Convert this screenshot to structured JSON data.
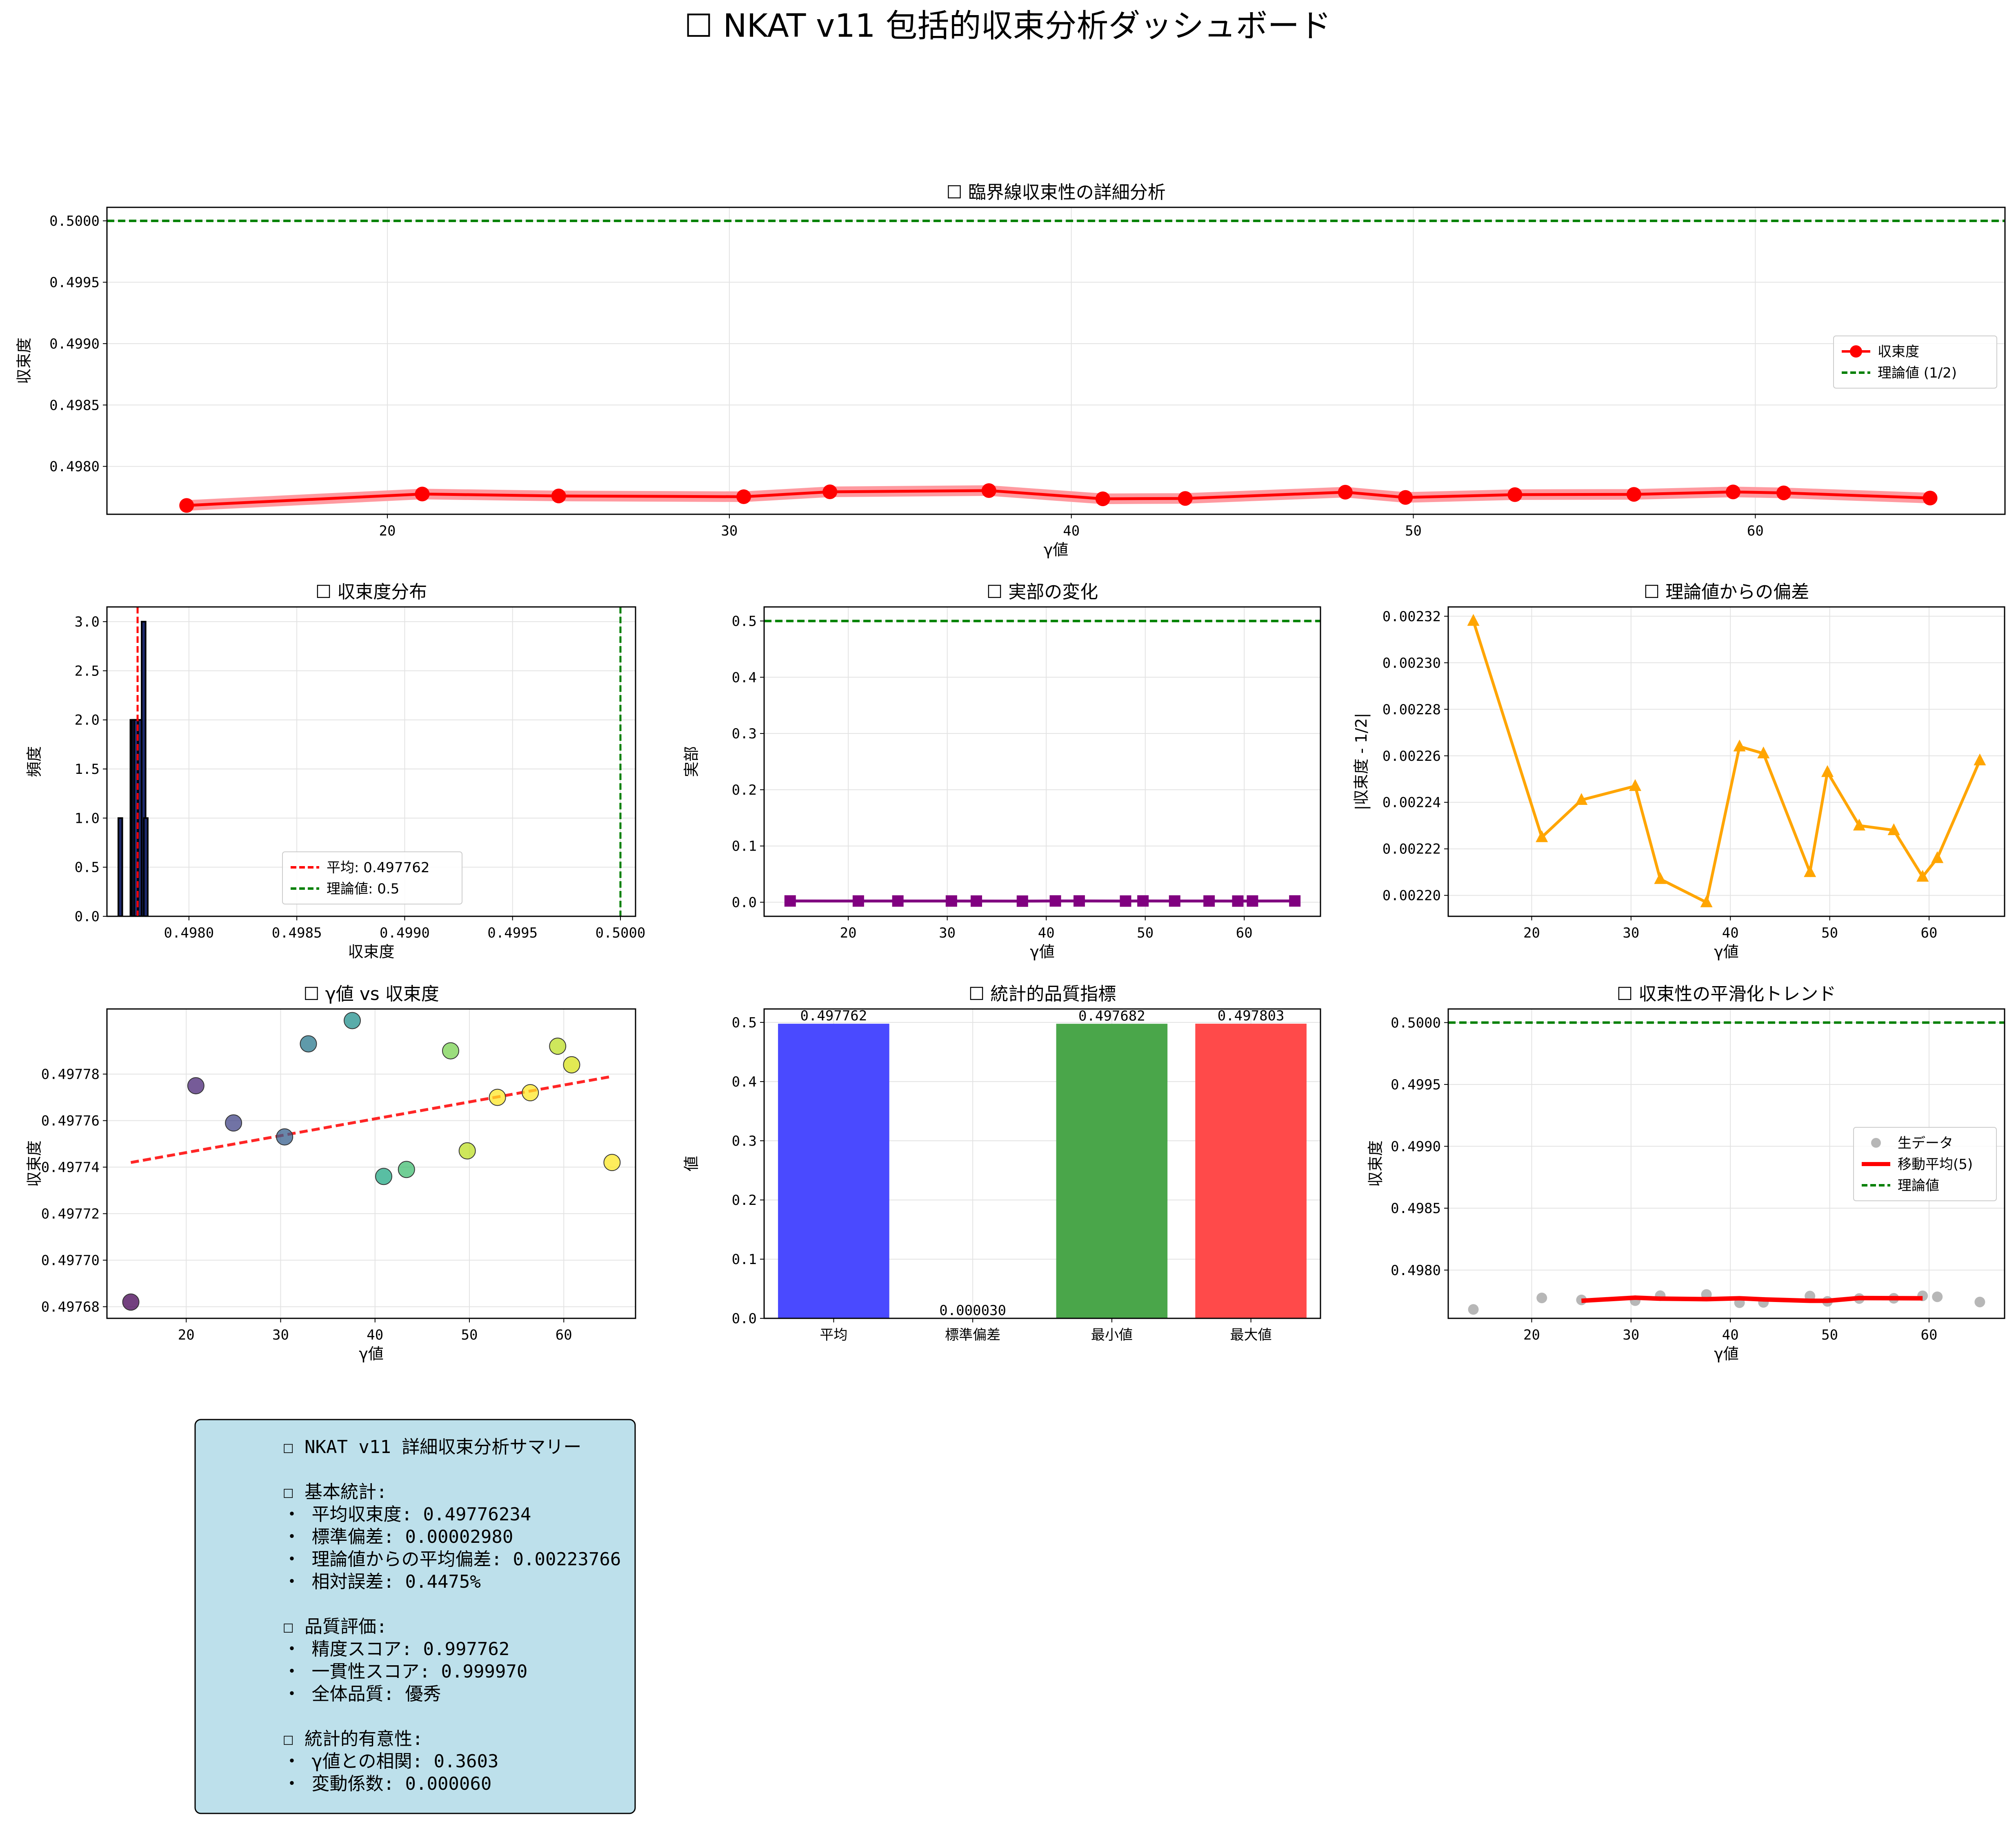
{
  "page": {
    "title": "☐ NKAT v11 包括的収束分析ダッシュボード"
  },
  "chart_data": [
    {
      "id": "critical-line",
      "type": "line",
      "title": "☐ 臨界線収束性の詳細分析",
      "xlabel": "γ値",
      "ylabel": "収束度",
      "xlim": [
        11.8,
        67.3
      ],
      "ylim": [
        0.49761,
        0.50011
      ],
      "xticks": [
        20,
        30,
        40,
        50,
        60
      ],
      "yticks": [
        0.498,
        0.4985,
        0.499,
        0.4995,
        0.5
      ],
      "ytick_labels": [
        "0.4980",
        "0.4985",
        "0.4990",
        "0.4995",
        "0.5000"
      ],
      "grid": true,
      "legend": "center-right",
      "series": [
        {
          "name": "収束度",
          "color": "#ff0000",
          "x": [
            14.13,
            21.02,
            25.01,
            30.42,
            32.94,
            37.59,
            40.92,
            43.33,
            48.01,
            49.77,
            52.97,
            56.45,
            59.35,
            60.83,
            65.11
          ],
          "y": [
            0.497682,
            0.497775,
            0.497759,
            0.497753,
            0.497793,
            0.497803,
            0.497736,
            0.497739,
            0.49779,
            0.497747,
            0.49777,
            0.497772,
            0.497792,
            0.497784,
            0.497742
          ]
        },
        {
          "name": "理論値 (1/2)",
          "color": "#008000",
          "y_const": 0.5
        }
      ]
    },
    {
      "id": "histogram",
      "type": "bar",
      "title": "☐ 収束度分布",
      "xlabel": "収束度",
      "ylabel": "頻度",
      "xlim": [
        0.49762,
        0.50007
      ],
      "ylim": [
        0,
        3.15
      ],
      "xticks": [
        0.498,
        0.4985,
        0.499,
        0.4995,
        0.5
      ],
      "xtick_labels": [
        "0.4980",
        "0.4985",
        "0.4990",
        "0.4995",
        "0.5000"
      ],
      "yticks": [
        0,
        0.5,
        1,
        1.5,
        2,
        2.5,
        3
      ],
      "ytick_labels": [
        "0.0",
        "0.5",
        "1.0",
        "1.5",
        "2.0",
        "2.5",
        "3.0"
      ],
      "grid": true,
      "legend": "lower-right",
      "bins": [
        {
          "x": 0.497682,
          "count": 1
        },
        {
          "x": 0.497738,
          "count": 2
        },
        {
          "x": 0.497745,
          "count": 2
        },
        {
          "x": 0.497755,
          "count": 2
        },
        {
          "x": 0.497773,
          "count": 2
        },
        {
          "x": 0.49779,
          "count": 3
        },
        {
          "x": 0.4978,
          "count": 1
        }
      ],
      "series": [
        {
          "name": "平均: 0.497762",
          "color": "#ff0000",
          "x_const": 0.497762
        },
        {
          "name": "理論値: 0.5",
          "color": "#008000",
          "x_const": 0.5
        }
      ]
    },
    {
      "id": "real-part",
      "type": "line",
      "title": "☐ 実部の変化",
      "xlabel": "γ値",
      "ylabel": "実部",
      "xlim": [
        11.5,
        67.7
      ],
      "ylim": [
        -0.025,
        0.525
      ],
      "xticks": [
        20,
        30,
        40,
        50,
        60
      ],
      "yticks": [
        0,
        0.1,
        0.2,
        0.3,
        0.4,
        0.5
      ],
      "ytick_labels": [
        "0.0",
        "0.1",
        "0.2",
        "0.3",
        "0.4",
        "0.5"
      ],
      "grid": true,
      "series": [
        {
          "name": "",
          "color": "#800080",
          "x": [
            14.13,
            21.02,
            25.01,
            30.42,
            32.94,
            37.59,
            40.92,
            43.33,
            48.01,
            49.77,
            52.97,
            56.45,
            59.35,
            60.83,
            65.11
          ],
          "y": [
            0.0023,
            0.0022,
            0.0022,
            0.0022,
            0.0021,
            0.002,
            0.0023,
            0.0023,
            0.0021,
            0.0023,
            0.0022,
            0.0022,
            0.0021,
            0.0022,
            0.0023
          ]
        },
        {
          "name": "",
          "color": "#008000",
          "y_const": 0.5
        }
      ]
    },
    {
      "id": "deviation",
      "type": "line",
      "title": "☐ 理論値からの偏差",
      "xlabel": "γ値",
      "ylabel": "|収束度 - 1/2|",
      "xlim": [
        11.6,
        67.6
      ],
      "ylim": [
        0.002191,
        0.002324
      ],
      "xticks": [
        20,
        30,
        40,
        50,
        60
      ],
      "yticks": [
        0.0022,
        0.00222,
        0.00224,
        0.00226,
        0.00228,
        0.0023,
        0.00232
      ],
      "ytick_labels": [
        "0.00220",
        "0.00222",
        "0.00224",
        "0.00226",
        "0.00228",
        "0.00230",
        "0.00232"
      ],
      "grid": true,
      "series": [
        {
          "name": "",
          "color": "#ffa500",
          "x": [
            14.13,
            21.02,
            25.01,
            30.42,
            32.94,
            37.59,
            40.92,
            43.33,
            48.01,
            49.77,
            52.97,
            56.45,
            59.35,
            60.83,
            65.11
          ],
          "y": [
            0.002318,
            0.002225,
            0.002241,
            0.002247,
            0.002207,
            0.002197,
            0.002264,
            0.002261,
            0.00221,
            0.002253,
            0.00223,
            0.002228,
            0.002208,
            0.002216,
            0.002258
          ]
        }
      ]
    },
    {
      "id": "scatter",
      "type": "scatter",
      "title": "☐ γ値 vs 収束度",
      "xlabel": "γ値",
      "ylabel": "収束度",
      "xlim": [
        11.6,
        67.6
      ],
      "ylim": [
        0.497675,
        0.497808
      ],
      "xticks": [
        20,
        30,
        40,
        50,
        60
      ],
      "yticks": [
        0.49768,
        0.4977,
        0.49772,
        0.49774,
        0.49776,
        0.49778
      ],
      "ytick_labels": [
        "0.49768",
        "0.49770",
        "0.49772",
        "0.49774",
        "0.49776",
        "0.49778"
      ],
      "grid": true,
      "points": {
        "x": [
          14.13,
          21.02,
          25.01,
          30.42,
          32.94,
          37.59,
          40.92,
          43.33,
          48.01,
          49.77,
          52.97,
          56.45,
          59.35,
          60.83,
          65.11
        ],
        "y": [
          0.497682,
          0.497775,
          0.497759,
          0.497753,
          0.497793,
          0.497803,
          0.497736,
          0.497739,
          0.49779,
          0.497747,
          0.49777,
          0.497772,
          0.497792,
          0.497784,
          0.497742
        ],
        "colors": [
          "#440154",
          "#482475",
          "#414487",
          "#355f8d",
          "#2a788e",
          "#21908d",
          "#22a884",
          "#42be71",
          "#7ad151",
          "#bddf26",
          "#fde725",
          "#fde725",
          "#bddf26",
          "#d8e219",
          "#fde725"
        ]
      },
      "trend": {
        "color": "#ff0000",
        "x": [
          14.13,
          65.11
        ],
        "y": [
          0.497742,
          0.497779
        ]
      }
    },
    {
      "id": "quality-bars",
      "type": "bar",
      "title": "☐ 統計的品質指標",
      "ylabel": "値",
      "ylim": [
        0,
        0.5227
      ],
      "yticks": [
        0,
        0.1,
        0.2,
        0.3,
        0.4,
        0.5
      ],
      "ytick_labels": [
        "0.0",
        "0.1",
        "0.2",
        "0.3",
        "0.4",
        "0.5"
      ],
      "grid": true,
      "categories": [
        "平均",
        "標準偏差",
        "最小値",
        "最大値"
      ],
      "values": [
        0.497762,
        3e-05,
        0.497682,
        0.497803
      ],
      "value_labels": [
        "0.497762",
        "0.000030",
        "0.497682",
        "0.497803"
      ],
      "colors": [
        "#4a4aff",
        "#ffb84a",
        "#4aa64a",
        "#ff4a4a"
      ]
    },
    {
      "id": "smoothed",
      "type": "line",
      "title": "☐ 収束性の平滑化トレンド",
      "xlabel": "γ値",
      "ylabel": "収束度",
      "xlim": [
        11.6,
        67.6
      ],
      "ylim": [
        0.49761,
        0.50011
      ],
      "xticks": [
        20,
        30,
        40,
        50,
        60
      ],
      "yticks": [
        0.498,
        0.4985,
        0.499,
        0.4995,
        0.5
      ],
      "ytick_labels": [
        "0.4980",
        "0.4985",
        "0.4990",
        "0.4995",
        "0.5000"
      ],
      "grid": true,
      "legend": "center-right",
      "series": [
        {
          "name": "生データ",
          "color": "#999999",
          "x": [
            14.13,
            21.02,
            25.01,
            30.42,
            32.94,
            37.59,
            40.92,
            43.33,
            48.01,
            49.77,
            52.97,
            56.45,
            59.35,
            60.83,
            65.11
          ],
          "y": [
            0.497682,
            0.497775,
            0.497759,
            0.497753,
            0.497793,
            0.497803,
            0.497736,
            0.497739,
            0.49779,
            0.497747,
            0.49777,
            0.497772,
            0.497792,
            0.497784,
            0.497742
          ]
        },
        {
          "name": "移動平均(5)",
          "color": "#ff0000",
          "x": [
            25.01,
            30.42,
            32.94,
            37.59,
            40.92,
            43.33,
            48.01,
            49.77,
            52.97,
            56.45,
            59.35
          ],
          "y": [
            0.497752,
            0.497777,
            0.497769,
            0.497765,
            0.497772,
            0.497763,
            0.497752,
            0.497752,
            0.497774,
            0.497773,
            0.497772
          ]
        },
        {
          "name": "理論値",
          "color": "#008000",
          "y_const": 0.5
        }
      ]
    }
  ],
  "summary": {
    "lines": [
      "☐ NKAT v11 詳細収束分析サマリー",
      "",
      "☐ 基本統計:",
      "・ 平均収束度: 0.49776234",
      "・ 標準偏差: 0.00002980",
      "・ 理論値からの平均偏差: 0.00223766",
      "・ 相対誤差: 0.4475%",
      "",
      "☐ 品質評価:",
      "・ 精度スコア: 0.997762",
      "・ 一貫性スコア: 0.999970",
      "・ 全体品質: 優秀",
      "",
      "☐ 統計的有意性:",
      "・ γ値との相関: 0.3603",
      "・ 変動係数: 0.000060"
    ],
    "background": "#add8e6"
  }
}
